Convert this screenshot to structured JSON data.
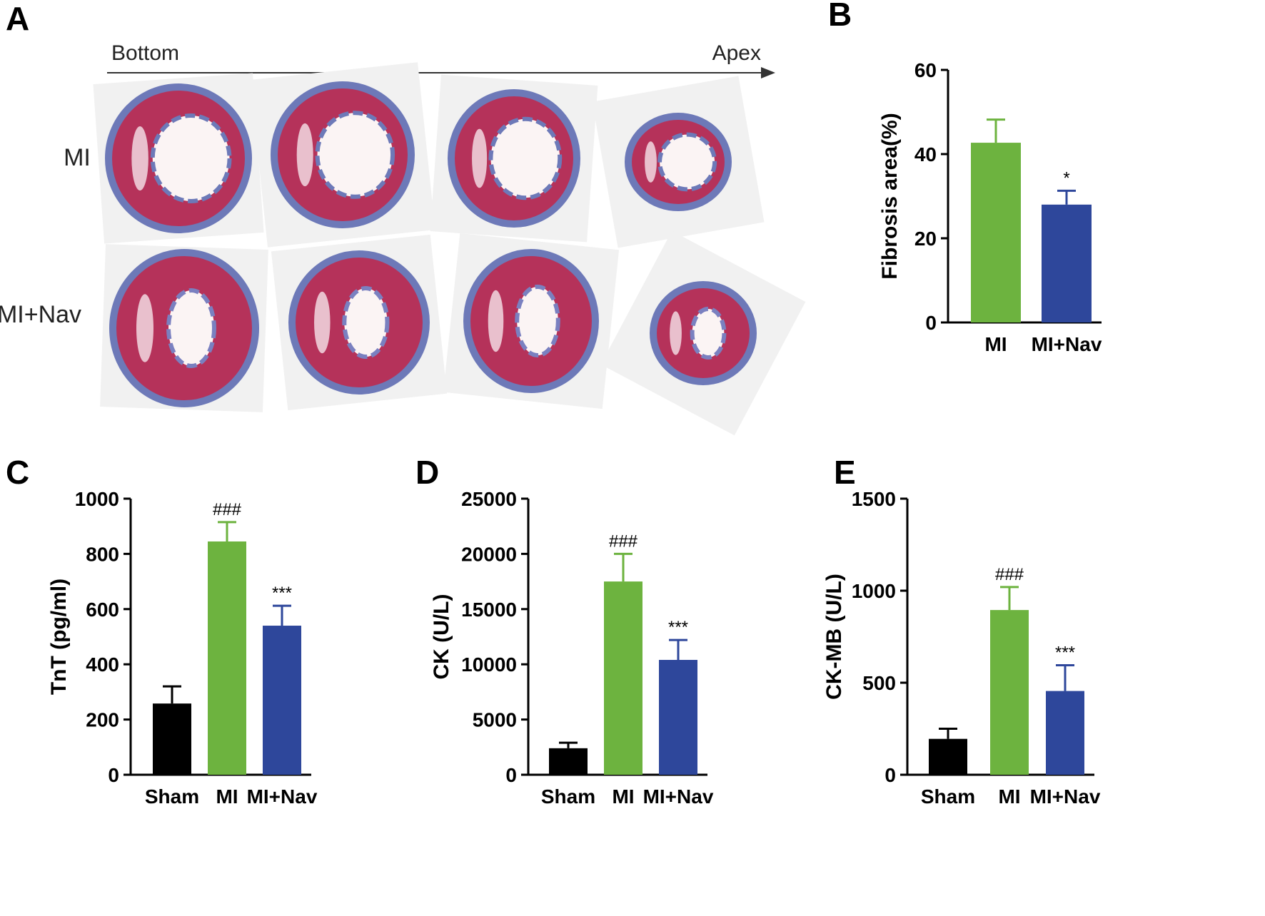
{
  "panels": {
    "A": {
      "letter": "A",
      "direction_start": "Bottom",
      "direction_end": "Apex",
      "rows": [
        "MI",
        "MI+Nav"
      ],
      "slices_per_row": 4
    }
  },
  "colors": {
    "sham": "#000000",
    "mi": "#6db33f",
    "nav": "#2e479b",
    "stain_red": "#b5325a",
    "stain_blue": "#6d79b8"
  },
  "chart_data": [
    {
      "panel": "B",
      "type": "bar",
      "categories": [
        "MI",
        "MI+Nav"
      ],
      "values": [
        42.7,
        28.0
      ],
      "errors": [
        5.5,
        3.3
      ],
      "colors": [
        "#6db33f",
        "#2e479b"
      ],
      "significance": [
        "",
        "*"
      ],
      "ylabel": "Fibrosis area(%)",
      "ylim": [
        0,
        60
      ],
      "yticks": [
        0,
        20,
        40,
        60
      ],
      "grid": false
    },
    {
      "panel": "C",
      "type": "bar",
      "categories": [
        "Sham",
        "MI",
        "MI+Nav"
      ],
      "values": [
        258,
        845,
        540
      ],
      "errors": [
        62,
        70,
        72
      ],
      "colors": [
        "#000000",
        "#6db33f",
        "#2e479b"
      ],
      "significance": [
        "",
        "###",
        "***"
      ],
      "ylabel": "TnT (pg/ml)",
      "ylim": [
        0,
        1000
      ],
      "yticks": [
        0,
        200,
        400,
        600,
        800,
        1000
      ],
      "grid": false
    },
    {
      "panel": "D",
      "type": "bar",
      "categories": [
        "Sham",
        "MI",
        "MI+Nav"
      ],
      "values": [
        2400,
        17500,
        10400
      ],
      "errors": [
        500,
        2500,
        1800
      ],
      "colors": [
        "#000000",
        "#6db33f",
        "#2e479b"
      ],
      "significance": [
        "",
        "###",
        "***"
      ],
      "ylabel": "CK (U/L)",
      "ylim": [
        0,
        25000
      ],
      "yticks": [
        0,
        5000,
        10000,
        15000,
        20000,
        25000
      ],
      "grid": false
    },
    {
      "panel": "E",
      "type": "bar",
      "categories": [
        "Sham",
        "MI",
        "MI+Nav"
      ],
      "values": [
        195,
        895,
        455
      ],
      "errors": [
        55,
        125,
        140
      ],
      "colors": [
        "#000000",
        "#6db33f",
        "#2e479b"
      ],
      "significance": [
        "",
        "###",
        "***"
      ],
      "ylabel": "CK-MB (U/L)",
      "ylim": [
        0,
        1500
      ],
      "yticks": [
        0,
        500,
        1000,
        1500
      ],
      "grid": false
    }
  ]
}
